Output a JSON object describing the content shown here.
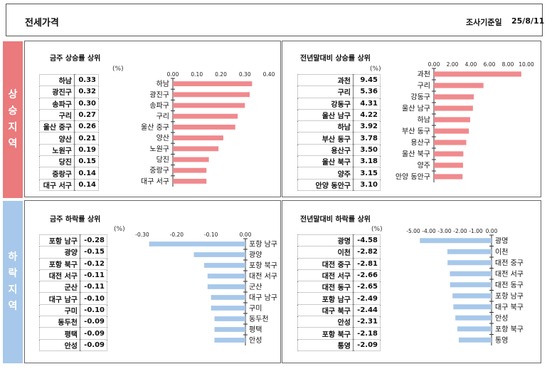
{
  "header": {
    "title": "전세가격",
    "date_label": "조사기준일",
    "date": "25/8/11"
  },
  "side": {
    "up": [
      "상",
      "승",
      "지",
      "역"
    ],
    "down": [
      "하",
      "락",
      "지",
      "역"
    ]
  },
  "chart_data": [
    {
      "id": "weekly_up",
      "type": "bar",
      "orientation": "horizontal",
      "title": "금주 상승률 상위",
      "unit": "(%)",
      "categories": [
        "하남",
        "광진구",
        "송파구",
        "구리",
        "울산 중구",
        "양산",
        "노원구",
        "당진",
        "중랑구",
        "대구 서구"
      ],
      "values": [
        0.33,
        0.32,
        0.3,
        0.27,
        0.26,
        0.21,
        0.19,
        0.15,
        0.14,
        0.14
      ],
      "value_labels": [
        "0.33",
        "0.32",
        "0.30",
        "0.27",
        "0.26",
        "0.21",
        "0.19",
        "0.15",
        "0.14",
        "0.14"
      ],
      "xlim": [
        0,
        0.4
      ],
      "ticks": [
        0,
        0.1,
        0.2,
        0.3,
        0.4
      ],
      "tick_labels": [
        "0.00",
        "0.10",
        "0.20",
        "0.30",
        "0.40"
      ],
      "color": "#f08a8d"
    },
    {
      "id": "ytd_up",
      "type": "bar",
      "orientation": "horizontal",
      "title": "전년말대비 상승률 상위",
      "unit": "(%)",
      "categories": [
        "과천",
        "구리",
        "강동구",
        "울산 남구",
        "하남",
        "부산 동구",
        "용산구",
        "울산 북구",
        "양주",
        "안양 동안구"
      ],
      "values": [
        9.45,
        5.36,
        4.31,
        4.22,
        3.92,
        3.78,
        3.5,
        3.18,
        3.15,
        3.1
      ],
      "value_labels": [
        "9.45",
        "5.36",
        "4.31",
        "4.22",
        "3.92",
        "3.78",
        "3.50",
        "3.18",
        "3.15",
        "3.10"
      ],
      "xlim": [
        0,
        10
      ],
      "ticks": [
        0,
        2,
        4,
        6,
        8,
        10
      ],
      "tick_labels": [
        "0.00",
        "2.00",
        "4.00",
        "6.00",
        "8.00",
        "10.00"
      ],
      "color": "#f08a8d"
    },
    {
      "id": "weekly_down",
      "type": "bar",
      "orientation": "horizontal",
      "title": "금주 하락률 상위",
      "unit": "(%)",
      "categories": [
        "포항 남구",
        "광양",
        "포항 북구",
        "대전 서구",
        "군산",
        "대구 남구",
        "구미",
        "동두천",
        "평택",
        "안성"
      ],
      "values": [
        -0.28,
        -0.15,
        -0.12,
        -0.11,
        -0.11,
        -0.1,
        -0.1,
        -0.09,
        -0.09,
        -0.09
      ],
      "value_labels": [
        "-0.28",
        "-0.15",
        "-0.12",
        "-0.11",
        "-0.11",
        "-0.10",
        "-0.10",
        "-0.09",
        "-0.09",
        "-0.09"
      ],
      "xlim": [
        -0.3,
        0
      ],
      "ticks": [
        -0.3,
        -0.2,
        -0.1,
        0
      ],
      "tick_labels": [
        "-0.30",
        "-0.20",
        "-0.10",
        "0.00"
      ],
      "color": "#a7c8ea"
    },
    {
      "id": "ytd_down",
      "type": "bar",
      "orientation": "horizontal",
      "title": "전년말대비 하락률 상위",
      "unit": "(%)",
      "categories": [
        "광명",
        "이천",
        "대전 중구",
        "대전 서구",
        "대전 동구",
        "포항 남구",
        "대구 북구",
        "안성",
        "포항 북구",
        "통영"
      ],
      "values": [
        -4.58,
        -2.82,
        -2.81,
        -2.66,
        -2.65,
        -2.49,
        -2.44,
        -2.31,
        -2.18,
        -2.09
      ],
      "value_labels": [
        "-4.58",
        "-2.82",
        "-2.81",
        "-2.66",
        "-2.65",
        "-2.49",
        "-2.44",
        "-2.31",
        "-2.18",
        "-2.09"
      ],
      "xlim": [
        -5,
        0
      ],
      "ticks": [
        -5,
        -4,
        -3,
        -2,
        -1,
        0
      ],
      "tick_labels": [
        "-5.00",
        "-4.00",
        "-3.00",
        "-2.00",
        "-1.00",
        "0.00"
      ],
      "color": "#a7c8ea"
    }
  ]
}
